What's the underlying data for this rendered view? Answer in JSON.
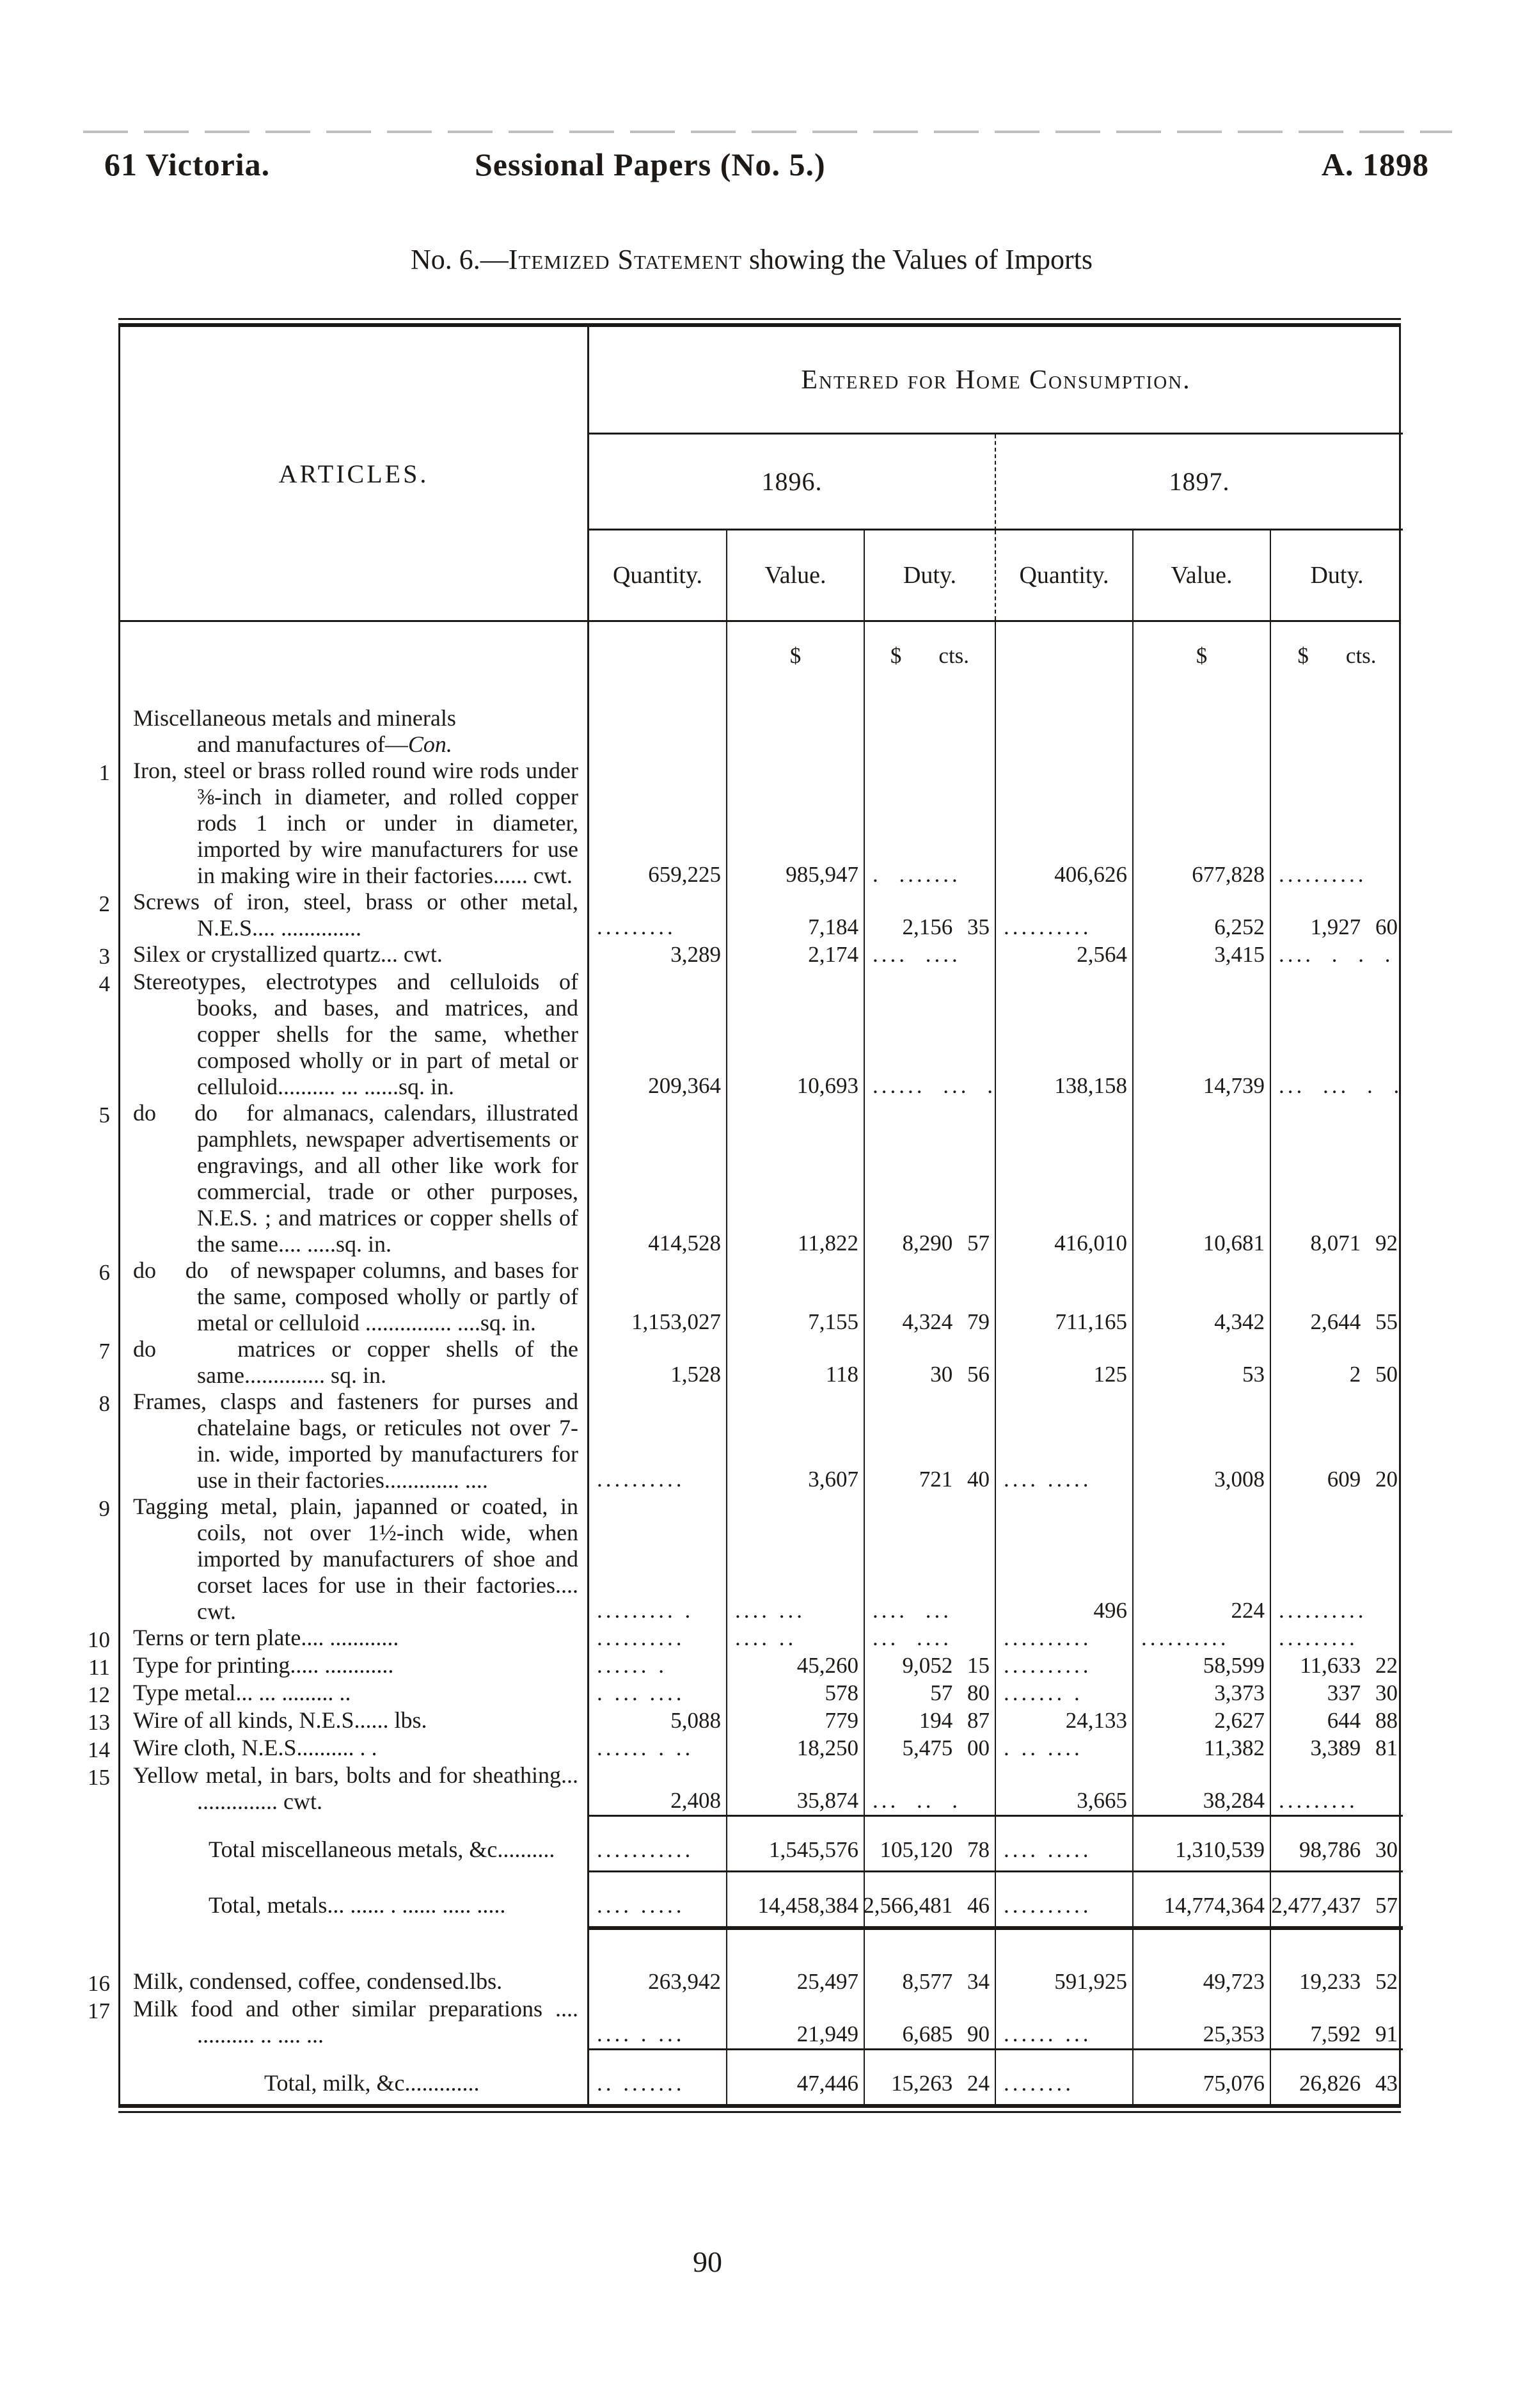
{
  "page": {
    "running_left": "61 Victoria.",
    "running_center": "Sessional Papers (No. 5.)",
    "running_right": "A. 1898",
    "subtitle_prefix": "No. 6.—",
    "subtitle_smallcaps": "Itemized Statement",
    "subtitle_suffix": " showing the Values of Imports",
    "page_number": "90"
  },
  "table": {
    "articles_header": "ARTICLES.",
    "consumption_header": "Entered for Home Consumption.",
    "years": [
      "1896.",
      "1897."
    ],
    "measure_headers": [
      "Quantity.",
      "Value.",
      "Duty."
    ],
    "currency_symbol": "$",
    "cents_label": "cts.",
    "body": [
      {
        "type": "group",
        "line1": "Miscellaneous metals and minerals",
        "line2_roman": "and manufactures of—",
        "line2_italic": "Con."
      },
      {
        "type": "item",
        "num": "1",
        "text": "Iron, steel or brass rolled round wire rods under ⅜-inch in diameter, and rolled copper rods 1 inch or under in diameter, imported by wire manufacturers for use in making wire in their factories...... cwt.",
        "cells": [
          "659,225",
          "985,947",
          ". .......",
          "406,626",
          "677,828",
          ".........."
        ]
      },
      {
        "type": "item",
        "num": "2",
        "text": "Screws of iron, steel, brass or other metal, N.E.S.... ..............",
        "cells": [
          ".........",
          "7,184",
          "2,156 35",
          "..........",
          "6,252",
          "1,927 60"
        ]
      },
      {
        "type": "item",
        "num": "3",
        "text": "Silex or crystallized quartz... cwt.",
        "cells": [
          "3,289",
          "2,174",
          ".... ....",
          "2,564",
          "3,415",
          ".... . . ."
        ]
      },
      {
        "type": "item",
        "num": "4",
        "text": "Stereotypes, electrotypes and celluloids of books, and bases, and matrices, and copper shells for the same, whether composed wholly or in part of metal or celluloid.......... ... ......sq. in.",
        "cells": [
          "209,364",
          "10,693",
          "...... ... .",
          "138,158",
          "14,739",
          "... ... . ."
        ]
      },
      {
        "type": "item",
        "num": "5",
        "text": "do    do   for almanacs, calendars, illustrated pamphlets, newspaper advertisements or engravings, and all other like work for commercial, trade or other purposes, N.E.S. ; and matrices or copper shells of the same.... .....sq. in.",
        "cells": [
          "414,528",
          "11,822",
          "8,290 57",
          "416,010",
          "10,681",
          "8,071 92"
        ]
      },
      {
        "type": "item",
        "num": "6",
        "text": "do    do   of newspaper columns, and bases for the same, composed wholly or partly of metal or celluloid ............... ....sq. in.",
        "cells": [
          "1,153,027",
          "7,155",
          "4,324 79",
          "711,165",
          "4,342",
          "2,644 55"
        ]
      },
      {
        "type": "item",
        "num": "7",
        "text": "do     matrices or copper shells of the same.............. sq. in.",
        "cells": [
          "1,528",
          "118",
          "30 56",
          "125",
          "53",
          "2 50"
        ]
      },
      {
        "type": "item",
        "num": "8",
        "text": "Frames, clasps and fasteners for purses and chatelaine bags, or reticules not over 7-in. wide, imported by manufacturers for use in their factories............. ....",
        "cells": [
          "..........",
          "3,607",
          "721 40",
          ".... .....",
          "3,008",
          "609 20"
        ]
      },
      {
        "type": "item",
        "num": "9",
        "text": "Tagging metal, plain, japanned or coated, in coils, not over 1½-inch wide, when imported by manufacturers of shoe and corset laces for use in their factories.... cwt.",
        "cells": [
          "......... .",
          ".... ...",
          ".... ...",
          "496",
          "224",
          ".........."
        ]
      },
      {
        "type": "item",
        "num": "10",
        "text": "Terns or tern plate.... ............",
        "cells": [
          "..........",
          ".... ..",
          "... ....",
          "..........",
          "..........",
          "........."
        ]
      },
      {
        "type": "item",
        "num": "11",
        "text": "Type for printing..... ............",
        "cells": [
          "...... .",
          "45,260",
          "9,052 15",
          "..........",
          "58,599",
          "11,633 22"
        ]
      },
      {
        "type": "item",
        "num": "12",
        "text": "Type metal... ... ......... ..",
        "cells": [
          ". ... ....",
          "578",
          "57 80",
          "....... .",
          "3,373",
          "337 30"
        ]
      },
      {
        "type": "item",
        "num": "13",
        "text": "Wire of all kinds, N.E.S...... lbs.",
        "cells": [
          "5,088",
          "779",
          "194 87",
          "24,133",
          "2,627",
          "644 88"
        ]
      },
      {
        "type": "item",
        "num": "14",
        "text": "Wire cloth, N.E.S.......... . .",
        "cells": [
          "...... . ..",
          "18,250",
          "5,475 00",
          ". .. ....",
          "11,382",
          "3,389 81"
        ]
      },
      {
        "type": "item",
        "num": "15",
        "text": "Yellow metal, in bars, bolts and for sheathing... .............. cwt.",
        "cells": [
          "2,408",
          "35,874",
          "... .. .",
          "3,665",
          "38,284",
          "........."
        ]
      },
      {
        "type": "rule",
        "weight": "thin"
      },
      {
        "type": "total",
        "indent": 1,
        "label": "Total miscellaneous metals, &c..........",
        "cells": [
          "...........",
          "1,545,576",
          "105,120 78",
          ".... .....",
          "1,310,539",
          "98,786 30"
        ]
      },
      {
        "type": "rule",
        "weight": "thin"
      },
      {
        "type": "total",
        "indent": 1,
        "label": "Total, metals... ...... . ...... ..... .....",
        "cells": [
          ".... .....",
          "14,458,384",
          "2,566,481 46",
          "..........",
          "14,774,364",
          "2,477,437 57"
        ]
      },
      {
        "type": "rule",
        "weight": "thick"
      },
      {
        "type": "spacer",
        "h": 56
      },
      {
        "type": "item",
        "num": "16",
        "text": "Milk, condensed, coffee, condensed.lbs.",
        "cells": [
          "263,942",
          "25,497",
          "8,577 34",
          "591,925",
          "49,723",
          "19,233 52"
        ]
      },
      {
        "type": "item",
        "num": "17",
        "text": "Milk food and other similar preparations .... .......... .. .... ...",
        "cells": [
          ".... . ...",
          "21,949",
          "6,685 90",
          "...... ...",
          "25,353",
          "7,592 91"
        ]
      },
      {
        "type": "rule",
        "weight": "thin"
      },
      {
        "type": "total",
        "indent": 2,
        "label": "Total, milk, &c.............",
        "cells": [
          ".. .......",
          "47,446",
          "15,263 24",
          "........",
          "75,076",
          "26,826 43"
        ]
      }
    ]
  }
}
